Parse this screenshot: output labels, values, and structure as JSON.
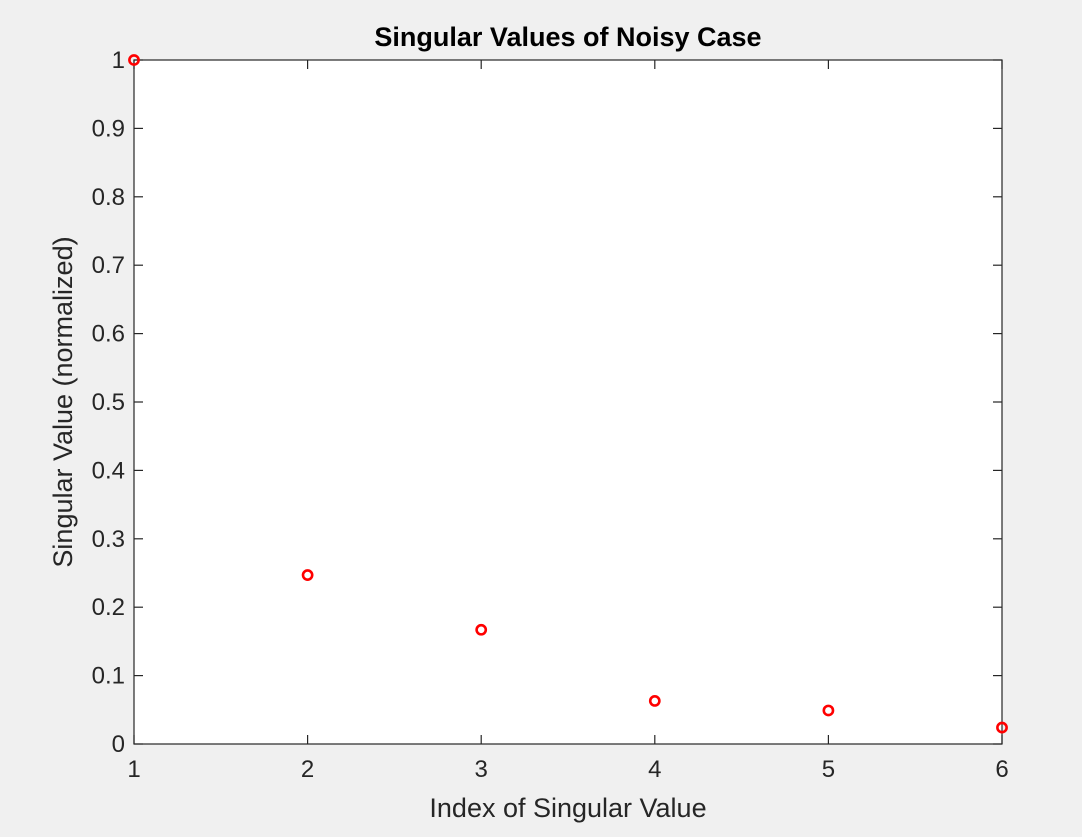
{
  "chart_data": {
    "type": "scatter",
    "title": "Singular Values of Noisy Case",
    "xlabel": "Index of Singular Value",
    "ylabel": "Singular Value (normalized)",
    "xlim": [
      1,
      6
    ],
    "ylim": [
      0,
      1
    ],
    "xticks": [
      1,
      2,
      3,
      4,
      5,
      6
    ],
    "yticks": [
      0,
      0.1,
      0.2,
      0.3,
      0.4,
      0.5,
      0.6,
      0.7,
      0.8,
      0.9,
      1
    ],
    "x": [
      1,
      2,
      3,
      4,
      5,
      6
    ],
    "y": [
      1.0,
      0.247,
      0.167,
      0.063,
      0.049,
      0.024
    ],
    "marker": "circle",
    "marker_color": "#ff0000",
    "grid": false,
    "box": true
  }
}
